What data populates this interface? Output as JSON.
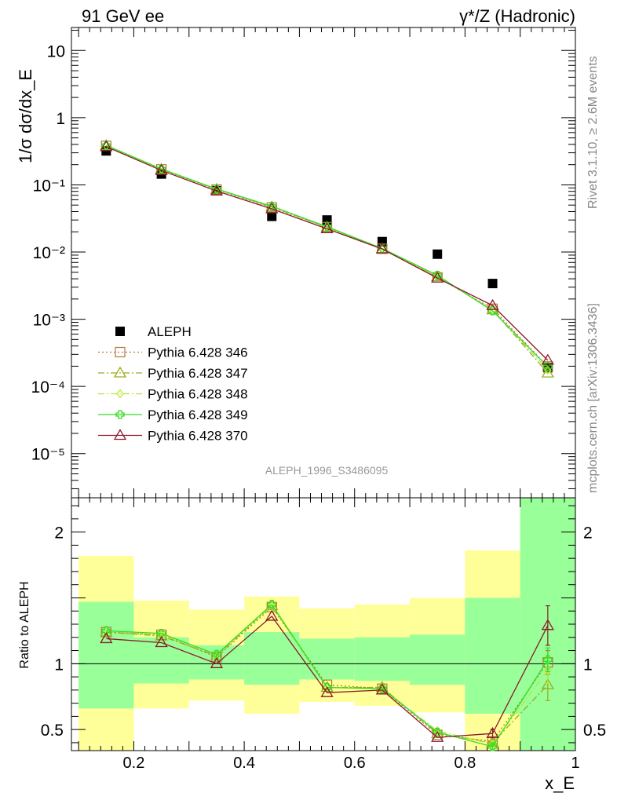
{
  "header": {
    "left": "91 GeV ee",
    "right": "γ*/Z (Hadronic)"
  },
  "side_text": {
    "rivet": "Rivet 3.1.10, ≥ 2.6M events",
    "source": "mcplots.cern.ch [arXiv:1306.3436]"
  },
  "analysis_label": "ALEPH_1996_S3486095",
  "chart_data": [
    {
      "type": "scatter",
      "panel": "main",
      "ylabel": "1/σ dσ/dx_E",
      "yscale": "log",
      "ylim": [
        2.2e-06,
        22
      ],
      "xlim": [
        0.087,
        1.0
      ],
      "yticks": [
        {
          "value": 10,
          "label": "10"
        },
        {
          "value": 1,
          "label": "1"
        },
        {
          "value": 0.1,
          "label": "10⁻¹"
        },
        {
          "value": 0.01,
          "label": "10⁻²"
        },
        {
          "value": 0.001,
          "label": "10⁻³"
        },
        {
          "value": 0.0001,
          "label": "10⁻⁴"
        },
        {
          "value": 1e-05,
          "label": "10⁻⁵"
        }
      ],
      "x": [
        0.15,
        0.25,
        0.35,
        0.45,
        0.55,
        0.65,
        0.75,
        0.85,
        0.95
      ],
      "legend": [
        {
          "name": "ALEPH",
          "style": "square-filled",
          "color": "#000000"
        },
        {
          "name": "Pythia 6.428 346",
          "style": "square-open",
          "color": "#b07a3a",
          "dash": "2,3"
        },
        {
          "name": "Pythia 6.428 347",
          "style": "triangle-open",
          "color": "#9aab1d",
          "dash": "8,3,2,3"
        },
        {
          "name": "Pythia 6.428 348",
          "style": "diamond-open",
          "color": "#b6e83a",
          "dash": "8,3,2,3"
        },
        {
          "name": "Pythia 6.428 349",
          "style": "cross-open",
          "color": "#33dd22",
          "dash": ""
        },
        {
          "name": "Pythia 6.428 370",
          "style": "triangle-open",
          "color": "#8b1a2a",
          "dash": ""
        }
      ],
      "series": [
        {
          "name": "ALEPH",
          "values": [
            0.32,
            0.145,
            0.082,
            0.034,
            0.03,
            0.0143,
            0.0093,
            0.0034,
            0.00019
          ]
        },
        {
          "name": "Pythia 6.428 346",
          "values": [
            0.38,
            0.17,
            0.085,
            0.046,
            0.0235,
            0.0112,
            0.0042,
            0.00143,
            0.000198
          ]
        },
        {
          "name": "Pythia 6.428 347",
          "values": [
            0.385,
            0.171,
            0.086,
            0.047,
            0.0234,
            0.0112,
            0.0043,
            0.00138,
            0.000158
          ]
        },
        {
          "name": "Pythia 6.428 348",
          "values": [
            0.385,
            0.172,
            0.086,
            0.048,
            0.0236,
            0.0113,
            0.0044,
            0.00137,
            0.000176
          ]
        },
        {
          "name": "Pythia 6.428 349",
          "values": [
            0.387,
            0.173,
            0.087,
            0.048,
            0.0238,
            0.0113,
            0.0045,
            0.00133,
            0.000196
          ]
        },
        {
          "name": "Pythia 6.428 370",
          "values": [
            0.37,
            0.164,
            0.081,
            0.044,
            0.0222,
            0.0111,
            0.0041,
            0.0016,
            0.000245
          ]
        }
      ]
    },
    {
      "type": "line",
      "panel": "ratio",
      "ylabel": "Ratio to ALEPH",
      "xlabel": "x_E",
      "ylim": [
        0.34,
        2.26
      ],
      "xlim": [
        0.087,
        1.0
      ],
      "yticks": [
        {
          "value": 0.5,
          "label": "0.5"
        },
        {
          "value": 1,
          "label": "1"
        },
        {
          "value": 2,
          "label": "2"
        }
      ],
      "xticks": [
        {
          "value": 0.2,
          "label": "0.2"
        },
        {
          "value": 0.4,
          "label": "0.4"
        },
        {
          "value": 0.6,
          "label": "0.6"
        },
        {
          "value": 0.8,
          "label": "0.8"
        },
        {
          "value": 1.0,
          "label": "1"
        }
      ],
      "bands": [
        {
          "x0": 0.1,
          "x1": 0.2,
          "y1_lo": 0.66,
          "y1_hi": 1.47,
          "y2_lo": 0.0,
          "y2_hi": 1.82
        },
        {
          "x0": 0.2,
          "x1": 0.3,
          "y1_lo": 0.85,
          "y1_hi": 1.2,
          "y2_lo": 0.66,
          "y2_hi": 1.48
        },
        {
          "x0": 0.3,
          "x1": 0.4,
          "y1_lo": 0.88,
          "y1_hi": 1.14,
          "y2_lo": 0.72,
          "y2_hi": 1.41
        },
        {
          "x0": 0.4,
          "x1": 0.5,
          "y1_lo": 0.84,
          "y1_hi": 1.24,
          "y2_lo": 0.62,
          "y2_hi": 1.51
        },
        {
          "x0": 0.5,
          "x1": 0.6,
          "y1_lo": 0.88,
          "y1_hi": 1.19,
          "y2_lo": 0.71,
          "y2_hi": 1.42
        },
        {
          "x0": 0.6,
          "x1": 0.7,
          "y1_lo": 0.87,
          "y1_hi": 1.2,
          "y2_lo": 0.68,
          "y2_hi": 1.45
        },
        {
          "x0": 0.7,
          "x1": 0.8,
          "y1_lo": 0.84,
          "y1_hi": 1.22,
          "y2_lo": 0.63,
          "y2_hi": 1.5
        },
        {
          "x0": 0.8,
          "x1": 0.9,
          "y1_lo": 0.62,
          "y1_hi": 1.5,
          "y2_lo": 0.0,
          "y2_hi": 1.86
        },
        {
          "x0": 0.9,
          "x1": 1.0,
          "y1_lo": 0.0,
          "y1_hi": 3.0,
          "y2_lo": 0.0,
          "y2_hi": 3.0
        }
      ],
      "band_colors": {
        "inner": "#99ff99",
        "outer": "#ffff99"
      },
      "x": [
        0.15,
        0.25,
        0.35,
        0.45,
        0.55,
        0.65,
        0.75,
        0.85,
        0.95
      ],
      "series": [
        {
          "name": "Pythia 6.428 346",
          "values": [
            1.24,
            1.22,
            1.05,
            1.43,
            0.84,
            0.81,
            0.46,
            0.41,
            1.01
          ],
          "err": [
            0,
            0,
            0,
            0,
            0,
            0,
            0,
            0.02,
            0.09
          ]
        },
        {
          "name": "Pythia 6.428 347",
          "values": [
            1.24,
            1.21,
            1.06,
            1.44,
            0.82,
            0.82,
            0.47,
            0.4,
            0.84
          ],
          "err": [
            0,
            0,
            0,
            0,
            0,
            0,
            0,
            0.02,
            0.12
          ]
        },
        {
          "name": "Pythia 6.428 348",
          "values": [
            1.25,
            1.22,
            1.07,
            1.44,
            0.82,
            0.81,
            0.49,
            0.39,
            0.95
          ],
          "err": [
            0,
            0,
            0,
            0,
            0,
            0,
            0,
            0.02,
            0.1
          ]
        },
        {
          "name": "Pythia 6.428 349",
          "values": [
            1.25,
            1.23,
            1.07,
            1.45,
            0.82,
            0.81,
            0.48,
            0.37,
            1.03
          ],
          "err": [
            0,
            0,
            0,
            0,
            0,
            0,
            0,
            0.02,
            0.09
          ]
        },
        {
          "name": "Pythia 6.428 370",
          "values": [
            1.19,
            1.16,
            1.0,
            1.36,
            0.78,
            0.8,
            0.44,
            0.47,
            1.29
          ],
          "err": [
            0,
            0,
            0,
            0,
            0,
            0,
            0,
            0.03,
            0.15
          ]
        }
      ]
    }
  ]
}
